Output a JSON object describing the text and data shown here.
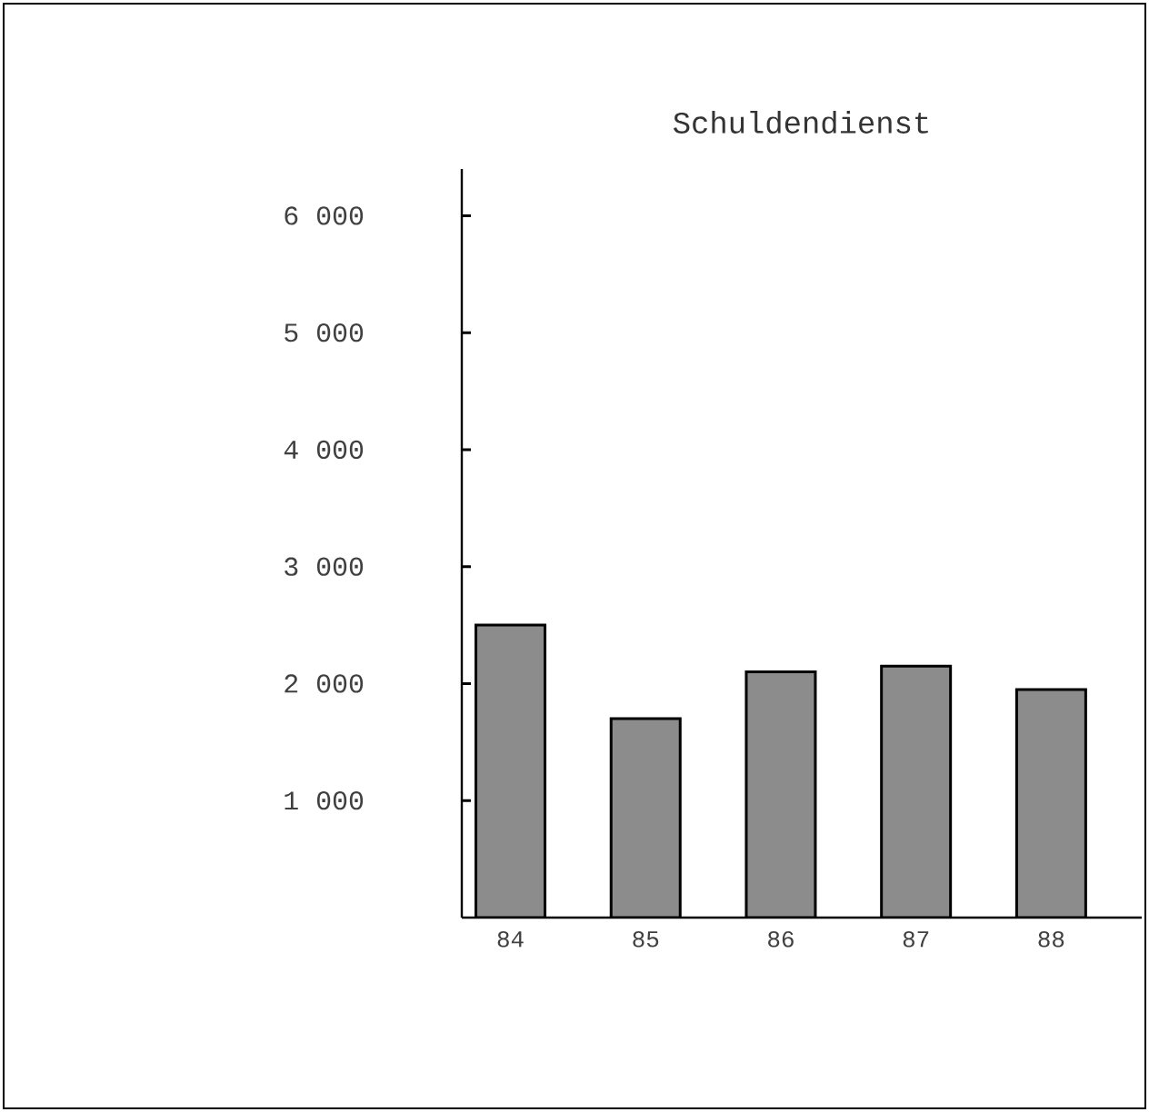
{
  "chart_data": {
    "type": "bar",
    "title": "Schuldendienst",
    "categories": [
      "84",
      "85",
      "86",
      "87",
      "88"
    ],
    "values": [
      2500,
      1700,
      2100,
      2150,
      1950
    ],
    "color": "#8c8c8c",
    "ylim": [
      0,
      6400
    ],
    "yticks": [
      {
        "value": 1000,
        "label": "1 000"
      },
      {
        "value": 2000,
        "label": "2 000"
      },
      {
        "value": 3000,
        "label": "3 000"
      },
      {
        "value": 4000,
        "label": "4 000"
      },
      {
        "value": 5000,
        "label": "5 000"
      },
      {
        "value": 6000,
        "label": "6 000"
      }
    ],
    "grid": false
  }
}
